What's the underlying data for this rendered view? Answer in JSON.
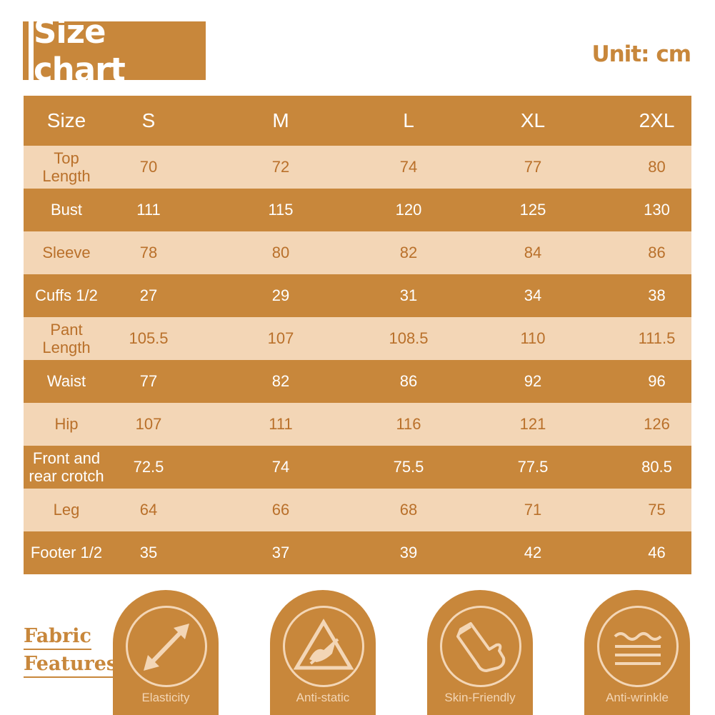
{
  "title": "Size chart",
  "unit": "Unit: cm",
  "table": {
    "header": [
      "Size",
      "S",
      "M",
      "L",
      "XL",
      "2XL"
    ],
    "rows": [
      {
        "label": "Top\nLength",
        "values": [
          "70",
          "72",
          "74",
          "77",
          "80"
        ]
      },
      {
        "label": "Bust",
        "values": [
          "111",
          "115",
          "120",
          "125",
          "130"
        ]
      },
      {
        "label": "Sleeve",
        "values": [
          "78",
          "80",
          "82",
          "84",
          "86"
        ]
      },
      {
        "label": "Cuffs 1/2",
        "values": [
          "27",
          "29",
          "31",
          "34",
          "38"
        ]
      },
      {
        "label": "Pant\nLength",
        "values": [
          "105.5",
          "107",
          "108.5",
          "110",
          "111.5"
        ]
      },
      {
        "label": "Waist",
        "values": [
          "77",
          "82",
          "86",
          "92",
          "96"
        ]
      },
      {
        "label": "Hip",
        "values": [
          "107",
          "111",
          "116",
          "121",
          "126"
        ]
      },
      {
        "label": "Front and\nrear crotch",
        "values": [
          "72.5",
          "74",
          "75.5",
          "77.5",
          "80.5"
        ]
      },
      {
        "label": "Leg",
        "values": [
          "64",
          "66",
          "68",
          "71",
          "75"
        ]
      },
      {
        "label": "Footer 1/2",
        "values": [
          "35",
          "37",
          "39",
          "42",
          "46"
        ]
      }
    ]
  },
  "fabric_features": {
    "heading_line1": "Fabric",
    "heading_line2": "Features",
    "items": [
      {
        "label": "Elasticity",
        "icon": "double-arrow-icon"
      },
      {
        "label": "Anti-static",
        "icon": "static-warning-icon"
      },
      {
        "label": "Skin-Friendly",
        "icon": "glove-icon"
      },
      {
        "label": "Anti-wrinkle",
        "icon": "waves-icon"
      }
    ]
  },
  "colors": {
    "primary": "#c8873b",
    "light": "#f3d6b6",
    "text_on_light": "#b9702a"
  }
}
